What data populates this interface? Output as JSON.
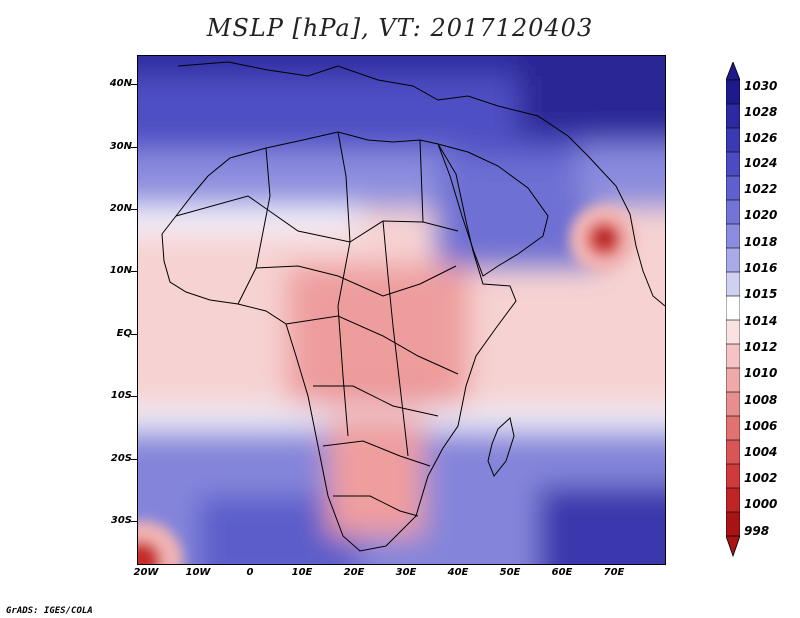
{
  "title": "MSLP [hPa], VT: 2017120403",
  "footer": "GrADS: IGES/COLA",
  "lat_labels": [
    "40N",
    "30N",
    "20N",
    "10N",
    "EQ",
    "10S",
    "20S",
    "30S"
  ],
  "lon_labels": [
    "20W",
    "10W",
    "0",
    "10E",
    "20E",
    "30E",
    "40E",
    "50E",
    "60E",
    "70E"
  ],
  "colorbar": {
    "levels": [
      "1030",
      "1028",
      "1026",
      "1024",
      "1022",
      "1020",
      "1018",
      "1016",
      "1015",
      "1014",
      "1012",
      "1010",
      "1008",
      "1006",
      "1004",
      "1002",
      "1000",
      "998"
    ],
    "colors": [
      "#1e1a8c",
      "#2b2aa0",
      "#3a3ab2",
      "#4b4cc2",
      "#5f60cf",
      "#7374d8",
      "#8c8de0",
      "#a9aae8",
      "#cfd0f2",
      "#ffffff",
      "#fbe2e2",
      "#f5c3c3",
      "#efa9a9",
      "#e88e8e",
      "#e27272",
      "#d95656",
      "#cf3a3a",
      "#c02424",
      "#a81414"
    ]
  },
  "map": {
    "lat_range": [
      -36,
      45
    ],
    "lon_range": [
      -21,
      79
    ],
    "high_pressure_color": "#2a2796",
    "low_pressure_color": "#c72a2a"
  }
}
